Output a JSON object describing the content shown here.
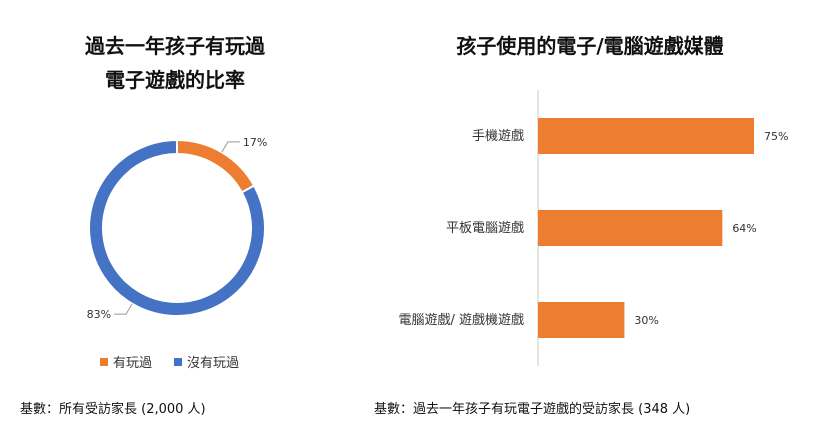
{
  "colors": {
    "orange": "#ED7D31",
    "blue": "#4472C4"
  },
  "donut": {
    "title_line1": "過去一年孩子有玩過",
    "title_line2": "電子遊戲的比率",
    "footnote": "基數：所有受訪家長 (2,000 人)"
  },
  "bars": {
    "title": "孩子使用的電子/電腦遊戲媒體",
    "footnote": "基數：過去一年孩子有玩電子遊戲的受訪家長 (348 人)"
  },
  "chart_data": [
    {
      "type": "pie",
      "variant": "donut",
      "title": "過去一年孩子有玩過電子遊戲的比率",
      "categories": [
        "有玩過",
        "沒有玩過"
      ],
      "values": [
        17,
        83
      ],
      "data_labels": [
        "17%",
        "83%"
      ],
      "legend": "bottom"
    },
    {
      "type": "bar",
      "orientation": "horizontal",
      "title": "孩子使用的電子/電腦遊戲媒體",
      "categories": [
        "手機遊戲",
        "平板電腦遊戲",
        "電腦遊戲/ 遊戲機遊戲"
      ],
      "values": [
        75,
        64,
        30
      ],
      "data_labels": [
        "75%",
        "64%",
        "30%"
      ],
      "xlim": [
        0,
        100
      ],
      "grid": false
    }
  ]
}
